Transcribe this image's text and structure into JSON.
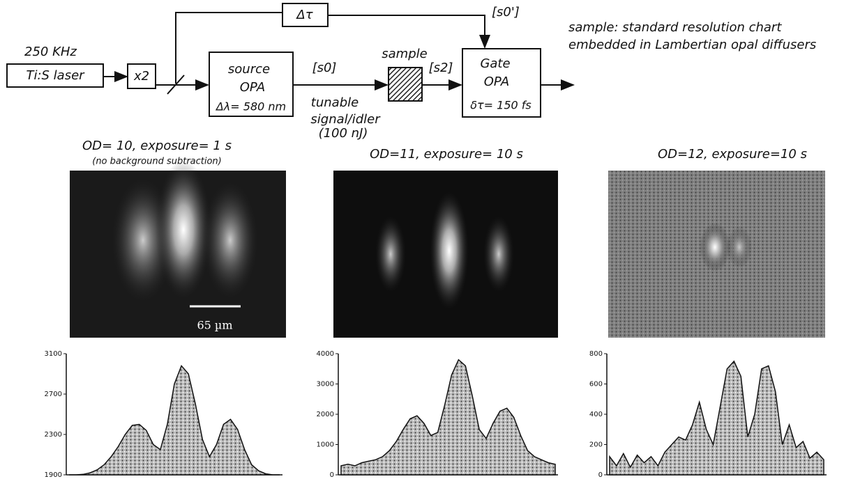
{
  "diagram": {
    "rep_rate": "250 KHz",
    "laser": "Ti:S laser",
    "doubler": "x2",
    "source_opa": {
      "line1": "source",
      "line2": "OPA",
      "line3": "Δλ= 580 nm"
    },
    "s0": "[s0]",
    "tunable": {
      "line1": "tunable",
      "line2": "signal/idler",
      "line3": "(100 nJ)"
    },
    "sample": "sample",
    "s2": "[s2]",
    "delay": "Δτ",
    "s0prime": "[s0']",
    "gate_opa": {
      "line1": "Gate",
      "line2": "OPA",
      "line3": "δτ= 150 fs"
    },
    "note": {
      "line1": "sample: standard resolution chart",
      "line2": "embedded in Lambertian opal diffusers"
    }
  },
  "panels": [
    {
      "title": "OD= 10, exposure= 1 s",
      "note": "(no background subtraction)",
      "scale_bar": "65 µm"
    },
    {
      "title": "OD=11, exposure= 10 s"
    },
    {
      "title": "OD=12, exposure=10 s"
    }
  ],
  "chart_data": [
    {
      "type": "area",
      "ylim": [
        1900,
        3100
      ],
      "yticks": [
        1900,
        2300,
        2700,
        3100
      ],
      "values": [
        1900,
        1900,
        1905,
        1920,
        1950,
        2000,
        2080,
        2180,
        2300,
        2390,
        2400,
        2340,
        2200,
        2150,
        2400,
        2800,
        2980,
        2900,
        2600,
        2250,
        2080,
        2200,
        2400,
        2450,
        2350,
        2150,
        2000,
        1940,
        1910,
        1900,
        1900
      ]
    },
    {
      "type": "area",
      "ylim": [
        0,
        4000
      ],
      "yticks": [
        0,
        1000,
        2000,
        3000,
        4000
      ],
      "values": [
        300,
        350,
        300,
        400,
        450,
        500,
        600,
        800,
        1100,
        1500,
        1850,
        1950,
        1700,
        1300,
        1400,
        2300,
        3300,
        3800,
        3600,
        2600,
        1500,
        1200,
        1700,
        2100,
        2200,
        1900,
        1300,
        800,
        600,
        500,
        400,
        350
      ]
    },
    {
      "type": "area",
      "ylim": [
        0,
        800
      ],
      "yticks": [
        0,
        200,
        400,
        600,
        800
      ],
      "values": [
        120,
        60,
        140,
        50,
        130,
        80,
        120,
        60,
        150,
        200,
        250,
        230,
        330,
        480,
        300,
        200,
        450,
        700,
        750,
        650,
        250,
        400,
        700,
        720,
        550,
        200,
        330,
        180,
        220,
        110,
        150,
        100
      ]
    }
  ]
}
